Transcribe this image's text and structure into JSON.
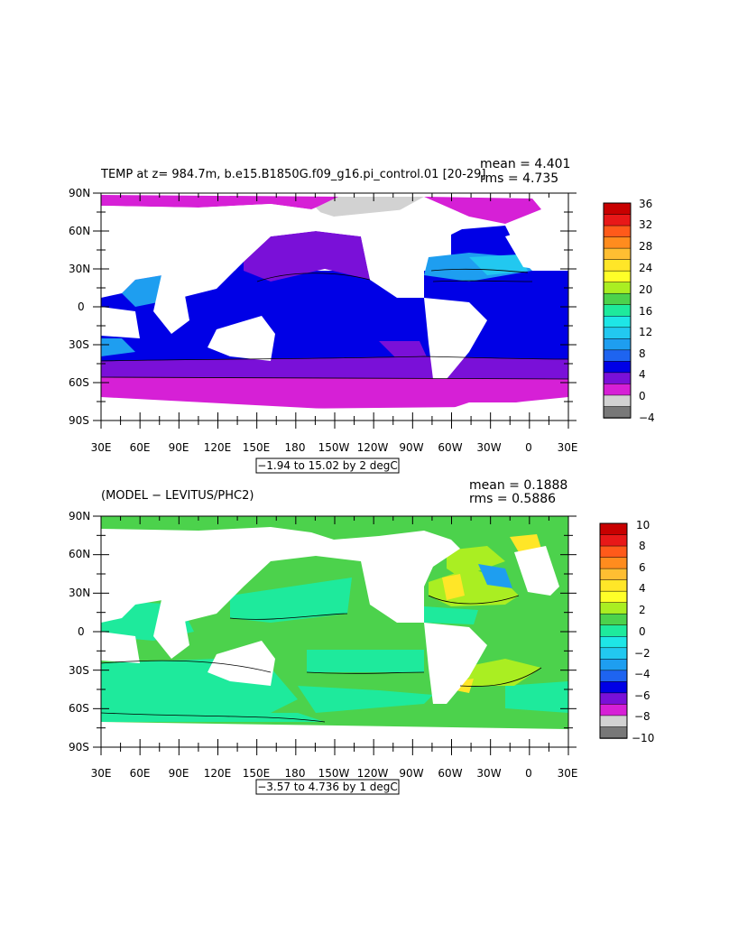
{
  "top_panel": {
    "title": "TEMP at z= 984.7m, b.e15.B1850G.f09_g16.pi_control.01 [20-29]",
    "mean": "mean = 4.401",
    "rms": "rms = 4.735",
    "contour_info": "−1.94 to 15.02 by 2 degC",
    "colorbar": {
      "labels": [
        "36",
        "32",
        "28",
        "24",
        "20",
        "16",
        "12",
        "8",
        "4",
        "0",
        "−4"
      ],
      "colors": [
        "#c80000",
        "#e81818",
        "#ff5a1a",
        "#ff8c1e",
        "#ffbe32",
        "#ffe628",
        "#ffff28",
        "#aaee22",
        "#4cd24c",
        "#1eea9c",
        "#1ee6e6",
        "#22c8f0",
        "#1e9ef0",
        "#1e64f0",
        "#0000e6",
        "#7a10d8",
        "#d620d6",
        "#d2d2d2",
        "#787878"
      ]
    }
  },
  "bottom_panel": {
    "title": "(MODEL − LEVITUS/PHC2)",
    "mean": "mean = 0.1888",
    "rms": "rms = 0.5886",
    "contour_info": "−3.57 to 4.736 by 1 degC",
    "colorbar": {
      "labels": [
        "10",
        "8",
        "6",
        "4",
        "2",
        "0",
        "−2",
        "−4",
        "−6",
        "−8",
        "−10"
      ],
      "colors": [
        "#c80000",
        "#e81818",
        "#ff5a1a",
        "#ff8c1e",
        "#ffbe32",
        "#ffe628",
        "#ffff28",
        "#aaee22",
        "#4cd24c",
        "#1eea9c",
        "#1ee6e6",
        "#22c8f0",
        "#1e9ef0",
        "#1e64f0",
        "#0000e6",
        "#7a10d8",
        "#d620d6",
        "#d2d2d2",
        "#787878"
      ]
    }
  },
  "axes": {
    "lon_labels": [
      "30E",
      "60E",
      "90E",
      "120E",
      "150E",
      "180",
      "150W",
      "120W",
      "90W",
      "60W",
      "30W",
      "0",
      "30E"
    ],
    "lat_labels": [
      "90N",
      "60N",
      "30N",
      "0",
      "30S",
      "60S",
      "90S"
    ]
  }
}
